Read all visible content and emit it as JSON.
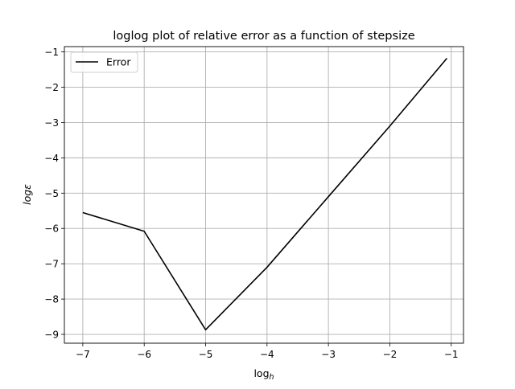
{
  "chart_data": {
    "type": "line",
    "title": "loglog plot of relative error as a function of stepsize",
    "xlabel_main": "log",
    "xlabel_sub": "h",
    "ylabel": "logε",
    "xlim": [
      -7.3,
      -0.8
    ],
    "ylim": [
      -9.25,
      -0.85
    ],
    "xticks": [
      -7,
      -6,
      -5,
      -4,
      -3,
      -2,
      -1
    ],
    "yticks": [
      -9,
      -8,
      -7,
      -6,
      -5,
      -4,
      -3,
      -2,
      -1
    ],
    "xtick_labels": [
      "−7",
      "−6",
      "−5",
      "−4",
      "−3",
      "−2",
      "−1"
    ],
    "ytick_labels": [
      "−9",
      "−8",
      "−7",
      "−6",
      "−5",
      "−4",
      "−3",
      "−2",
      "−1"
    ],
    "grid": true,
    "legend_position": "top-left",
    "series": [
      {
        "name": "Error",
        "color": "#000000",
        "x": [
          -7,
          -6,
          -5,
          -4,
          -3,
          -2,
          -1.07
        ],
        "y": [
          -5.55,
          -6.08,
          -8.87,
          -7.1,
          -5.1,
          -3.1,
          -1.18
        ]
      }
    ]
  }
}
